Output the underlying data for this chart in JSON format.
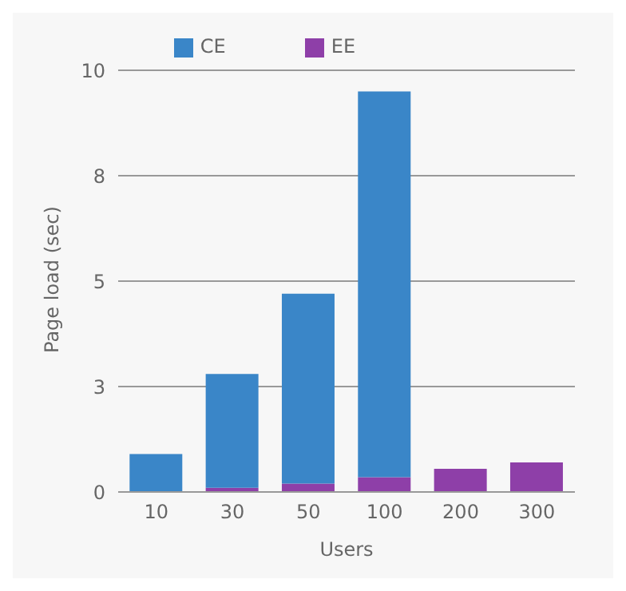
{
  "chart_data": {
    "type": "bar",
    "stacked": true,
    "categories": [
      "10",
      "30",
      "50",
      "100",
      "200",
      "300"
    ],
    "series": [
      {
        "name": "EE",
        "color": "#8e3fa8",
        "values": [
          0,
          0.1,
          0.2,
          0.35,
          0.55,
          0.7
        ]
      },
      {
        "name": "CE",
        "color": "#3a86c8",
        "values": [
          0.9,
          2.7,
          4.5,
          9.15,
          null,
          null
        ]
      }
    ],
    "xlabel": "Users",
    "ylabel": "Page load (sec)",
    "ylim": [
      0,
      10
    ],
    "yticks": [
      0,
      {
        "value": 2.5,
        "label": "3"
      },
      5,
      {
        "value": 7.5,
        "label": "8"
      },
      10
    ],
    "grid": "y",
    "legend": "top"
  }
}
